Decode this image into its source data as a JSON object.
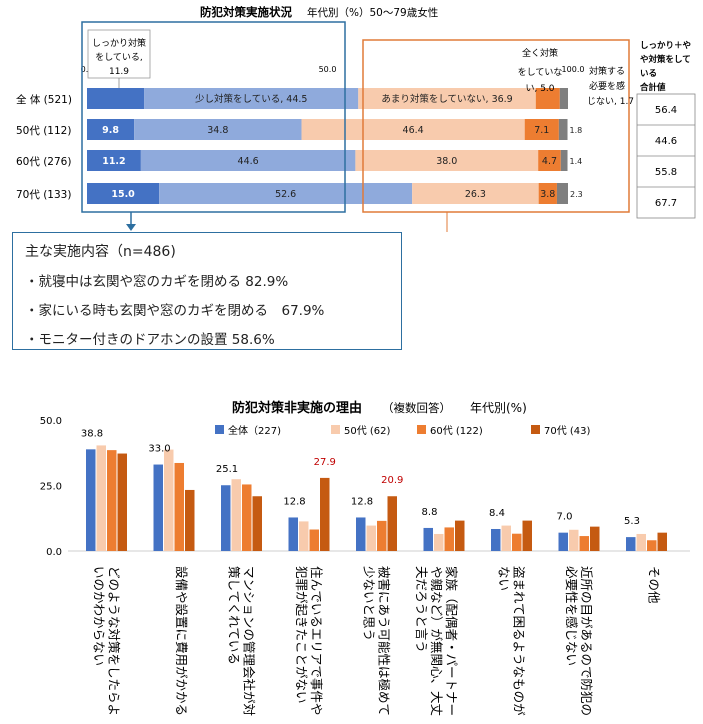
{
  "colors": {
    "blue_dark": "#4472c4",
    "blue_light": "#8faadc",
    "peach": "#f8cbad",
    "orange": "#ed7d31",
    "bar_black": "#7f7f7f",
    "frame_blue": "#2d6fa0",
    "frame_orange": "#e07b39",
    "red_label": "#c00000",
    "s_all": "#4472c4",
    "s_50": "#f8cbad",
    "s_60": "#ed7d31",
    "s_70": "#c55a11"
  },
  "callout": {
    "title": "主な実施内容（n=486)",
    "items": [
      "・就寝中は玄関や窓のカギを閉める 82.9%",
      "・家にいる時も玄関や窓のカギを閉める　67.9%",
      "・モニター付きのドアホンの設置 58.6%"
    ]
  },
  "chart_data": [
    {
      "type": "bar",
      "orientation": "horizontal-stacked",
      "title": "防犯対策実施状況",
      "subtitle": "年代別（%）50～79歳女性",
      "xlim": [
        0,
        100
      ],
      "tick_labels": [
        "0.0",
        "50.0",
        "100.0"
      ],
      "categories": [
        "全 体 (521)",
        "50代 (112)",
        "60代 (276)",
        "70代 (133)"
      ],
      "series": [
        {
          "name": "しっかり対策をしている",
          "values": [
            11.9,
            9.8,
            11.2,
            15.0
          ]
        },
        {
          "name": "少し対策をしている",
          "values": [
            44.5,
            34.8,
            44.6,
            52.6
          ]
        },
        {
          "name": "あまり対策をしていない",
          "values": [
            36.9,
            46.4,
            38.0,
            26.3
          ]
        },
        {
          "name": "全く対策をしていない",
          "values": [
            5.0,
            7.1,
            4.7,
            3.8
          ]
        },
        {
          "name": "対策する必要を感じない",
          "values": [
            1.7,
            1.8,
            1.4,
            2.3
          ]
        }
      ],
      "value_labels": [
        [
          "",
          "少し対策をしている, 44.5",
          "あまり対策をしていない, 36.9",
          "",
          ""
        ],
        [
          "9.8",
          "34.8",
          "46.4",
          "7.1",
          "1.8"
        ],
        [
          "11.2",
          "44.6",
          "38.0",
          "4.7",
          "1.4"
        ],
        [
          "15.0",
          "52.6",
          "26.3",
          "3.8",
          "2.3"
        ]
      ],
      "annotations": {
        "firm": [
          "しっかり対策",
          "をしている,",
          "11.9"
        ],
        "none": [
          "全く対策",
          "をしていな",
          "い, 5.0"
        ],
        "unneeded": [
          "対策する",
          "必要を感",
          "じない, 1.7"
        ]
      },
      "summary_header": [
        "しっかり＋や",
        "や対策をして",
        "いる",
        "合計値"
      ],
      "summary_values": [
        "56.4",
        "44.6",
        "55.8",
        "67.7"
      ]
    },
    {
      "type": "bar",
      "orientation": "vertical-grouped",
      "title": "防犯対策非実施の理由",
      "title_note": "（複数回答）",
      "subtitle": "年代別(%)",
      "ylim": [
        0,
        50
      ],
      "yticks": [
        "0.0",
        "25.0",
        "50.0"
      ],
      "categories": [
        [
          "どのような対策をしたらよ",
          "いのかわからない"
        ],
        [
          "設備や設置に費用がかかる"
        ],
        [
          "マンションの管理会社が対",
          "策してくれている"
        ],
        [
          "住んでいるエリアで事件や",
          "犯罪が起きたことがない"
        ],
        [
          "被害にあう可能性は極めて",
          "少ないと思う"
        ],
        [
          "家族（配偶者・パートナー",
          "や親など）が無関心、大丈",
          "夫だろうと言う"
        ],
        [
          "盗まれて困るようなものが",
          "ない"
        ],
        [
          "近所の目があるので防犯の",
          "必要性を感じない"
        ],
        [
          "その他"
        ]
      ],
      "series": [
        {
          "name": "全体（227)",
          "values": [
            38.8,
            33.0,
            25.1,
            12.8,
            12.8,
            8.8,
            8.4,
            7.0,
            5.3
          ]
        },
        {
          "name": "50代 (62)",
          "values": [
            40.3,
            38.7,
            27.4,
            11.3,
            9.7,
            6.5,
            9.7,
            8.1,
            6.5
          ]
        },
        {
          "name": "60代 (122)",
          "values": [
            38.5,
            33.6,
            25.4,
            8.2,
            11.5,
            9.0,
            6.6,
            5.7,
            4.1
          ]
        },
        {
          "name": "70代 (43)",
          "values": [
            37.2,
            23.3,
            20.9,
            27.9,
            20.9,
            11.6,
            11.6,
            9.3,
            7.0
          ]
        }
      ],
      "labels_all": [
        "38.8",
        "33.0",
        "25.1",
        "12.8",
        "12.8",
        "8.8",
        "8.4",
        "7.0",
        "5.3"
      ],
      "labels_red": [
        {
          "index": 3,
          "text": "27.9"
        },
        {
          "index": 4,
          "text": "20.9"
        }
      ]
    }
  ]
}
